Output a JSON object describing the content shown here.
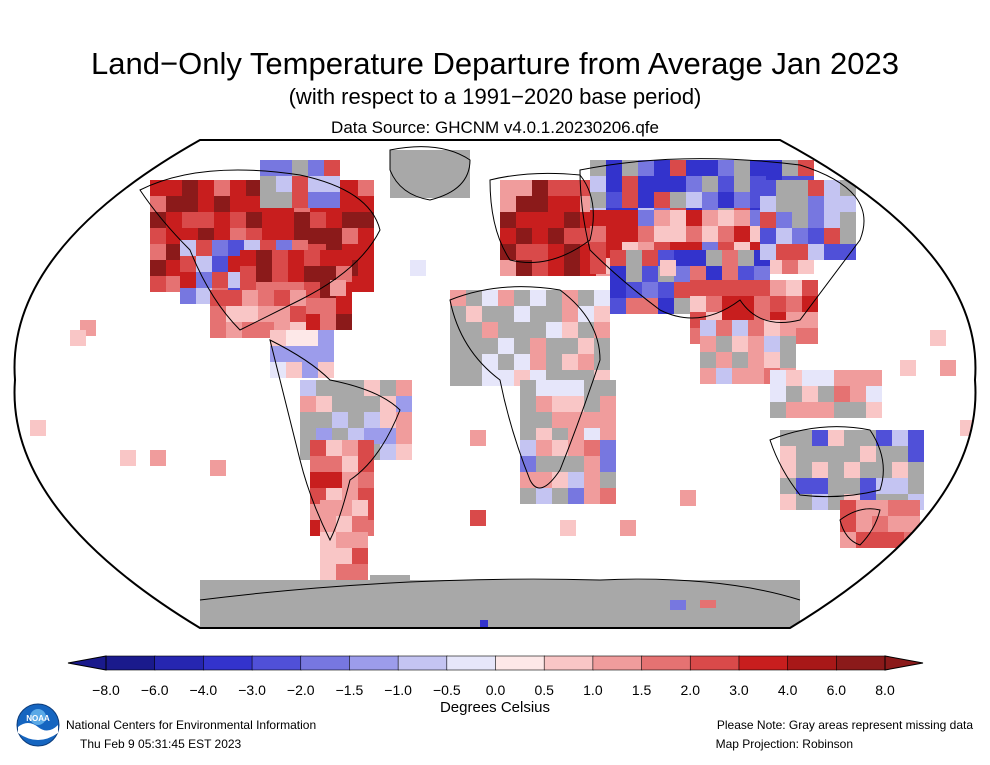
{
  "title": "Land−Only Temperature Departure from Average Jan 2023",
  "subtitle": "(with respect to a 1991−2020 base period)",
  "data_source": "Data Source: GHCNM v4.0.1.20230206.qfe",
  "colorbar": {
    "tick_labels": [
      "−8.0",
      "−6.0",
      "−4.0",
      "−3.0",
      "−2.0",
      "−1.5",
      "−1.0",
      "−0.5",
      "0.0",
      "0.5",
      "1.0",
      "1.5",
      "2.0",
      "3.0",
      "4.0",
      "6.0",
      "8.0"
    ],
    "bin_colors": [
      "#1a1a8c",
      "#2626b0",
      "#3333cc",
      "#5050d8",
      "#7777e0",
      "#9c9ceb",
      "#c4c4f2",
      "#e6e6fa",
      "#fde8e8",
      "#f9c6c6",
      "#f09c9c",
      "#e57272",
      "#d94a4a",
      "#c81e1e",
      "#a81818",
      "#8b1a1a"
    ],
    "units": "Degrees Celsius"
  },
  "colors": {
    "missing": "#a8a8a8",
    "coast": "#000000",
    "ocean": "#ffffff"
  },
  "footer": {
    "org": "National Centers for Environmental Information",
    "timestamp": "Thu Feb  9 05:31:45 EST 2023",
    "note": "Please Note: Gray areas represent missing data",
    "projection": "Map Projection: Robinson"
  },
  "logo": {
    "text": "NOAA",
    "icon": "noaa-logo-icon"
  }
}
